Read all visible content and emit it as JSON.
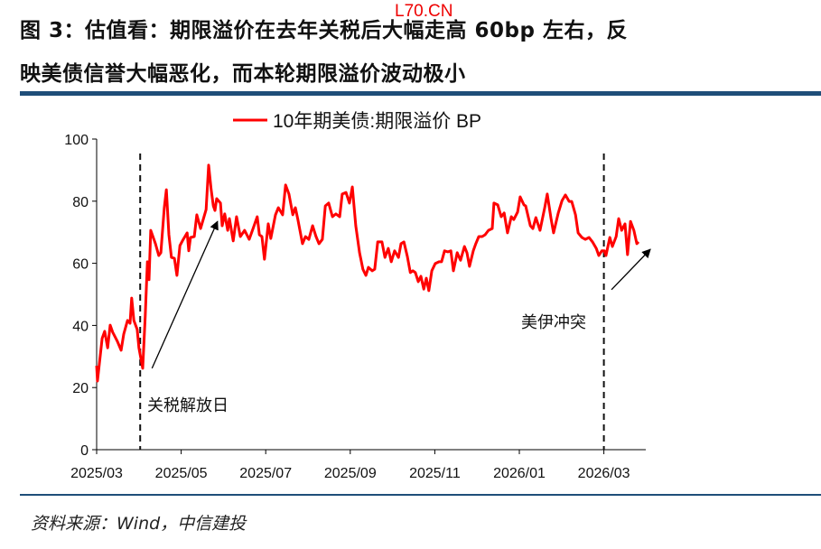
{
  "title": {
    "line1": "图 3：估值看：期限溢价在去年关税后大幅走高 60bp 左右，反",
    "line2": "映美债信誉大幅恶化，而本轮期限溢价波动极小"
  },
  "watermark": "L70.CN",
  "source": "资料来源：Wind，中信建投",
  "colors": {
    "series": "#ff0000",
    "rule": "#1f4e79"
  },
  "chart_data": {
    "type": "line",
    "title": "",
    "xlabel": "",
    "ylabel": "",
    "x_unit": "months since 2025/03",
    "xlim": [
      0,
      13
    ],
    "ylim": [
      0,
      100
    ],
    "yticks": [
      0,
      20,
      40,
      60,
      80,
      100
    ],
    "ytick_labels": [
      "0",
      "20",
      "40",
      "60",
      "80",
      "100"
    ],
    "xticks": [
      0,
      2,
      4,
      6,
      8,
      10,
      12
    ],
    "xtick_labels": [
      "2025/03",
      "2025/05",
      "2025/07",
      "2025/09",
      "2025/11",
      "2026/01",
      "2026/03"
    ],
    "legend": {
      "position": "top-center",
      "entries": [
        "10年期美债:期限溢价 BP"
      ]
    },
    "series": [
      {
        "name": "10年期美债:期限溢价 BP",
        "points": [
          [
            0,
            27.0
          ],
          [
            0.02,
            22.1
          ],
          [
            0.13,
            35.8
          ],
          [
            0.19,
            38.1
          ],
          [
            0.26,
            32.8
          ],
          [
            0.32,
            40.1
          ],
          [
            0.38,
            37.8
          ],
          [
            0.49,
            34.9
          ],
          [
            0.58,
            32.0
          ],
          [
            0.64,
            37.2
          ],
          [
            0.73,
            41.6
          ],
          [
            0.79,
            40.7
          ],
          [
            0.83,
            48.8
          ],
          [
            0.88,
            41.6
          ],
          [
            0.96,
            38.7
          ],
          [
            1.0,
            32.8
          ],
          [
            1.09,
            26.2
          ],
          [
            1.15,
            43.0
          ],
          [
            1.2,
            60.5
          ],
          [
            1.24,
            54.7
          ],
          [
            1.28,
            70.6
          ],
          [
            1.39,
            66.3
          ],
          [
            1.47,
            62.5
          ],
          [
            1.52,
            63.4
          ],
          [
            1.6,
            77.9
          ],
          [
            1.65,
            83.7
          ],
          [
            1.71,
            69.2
          ],
          [
            1.77,
            61.9
          ],
          [
            1.84,
            61.6
          ],
          [
            1.9,
            56.1
          ],
          [
            1.97,
            65.7
          ],
          [
            2.05,
            67.7
          ],
          [
            2.14,
            69.8
          ],
          [
            2.18,
            64.0
          ],
          [
            2.22,
            68.3
          ],
          [
            2.31,
            68.6
          ],
          [
            2.37,
            75.6
          ],
          [
            2.46,
            71.2
          ],
          [
            2.59,
            77.3
          ],
          [
            2.65,
            91.6
          ],
          [
            2.71,
            83.7
          ],
          [
            2.76,
            78.5
          ],
          [
            2.8,
            77.0
          ],
          [
            2.84,
            80.8
          ],
          [
            2.93,
            79.4
          ],
          [
            2.97,
            72.1
          ],
          [
            3.03,
            75.9
          ],
          [
            3.1,
            70.6
          ],
          [
            3.14,
            74.4
          ],
          [
            3.23,
            67.2
          ],
          [
            3.31,
            75.0
          ],
          [
            3.4,
            68.6
          ],
          [
            3.5,
            70.6
          ],
          [
            3.61,
            67.7
          ],
          [
            3.7,
            71.2
          ],
          [
            3.8,
            75.0
          ],
          [
            3.85,
            69.2
          ],
          [
            3.91,
            68.6
          ],
          [
            3.97,
            61.3
          ],
          [
            4.06,
            72.7
          ],
          [
            4.12,
            68.0
          ],
          [
            4.23,
            75.6
          ],
          [
            4.3,
            77.9
          ],
          [
            4.4,
            75.6
          ],
          [
            4.47,
            85.2
          ],
          [
            4.55,
            82.3
          ],
          [
            4.64,
            75.6
          ],
          [
            4.7,
            77.9
          ],
          [
            4.76,
            74.1
          ],
          [
            4.87,
            66.3
          ],
          [
            4.94,
            68.6
          ],
          [
            5.02,
            67.7
          ],
          [
            5.11,
            72.1
          ],
          [
            5.19,
            68.6
          ],
          [
            5.26,
            66.3
          ],
          [
            5.34,
            67.7
          ],
          [
            5.41,
            78.5
          ],
          [
            5.49,
            79.4
          ],
          [
            5.58,
            75.0
          ],
          [
            5.66,
            75.9
          ],
          [
            5.75,
            75.0
          ],
          [
            5.81,
            82.3
          ],
          [
            5.9,
            82.8
          ],
          [
            5.98,
            79.4
          ],
          [
            6.05,
            84.6
          ],
          [
            6.13,
            72.1
          ],
          [
            6.22,
            63.4
          ],
          [
            6.3,
            58.1
          ],
          [
            6.37,
            56.1
          ],
          [
            6.43,
            58.7
          ],
          [
            6.52,
            57.6
          ],
          [
            6.58,
            58.1
          ],
          [
            6.65,
            66.9
          ],
          [
            6.75,
            66.9
          ],
          [
            6.82,
            61.9
          ],
          [
            6.9,
            64.8
          ],
          [
            6.97,
            60.5
          ],
          [
            7.05,
            64.0
          ],
          [
            7.14,
            61.9
          ],
          [
            7.2,
            66.3
          ],
          [
            7.27,
            66.9
          ],
          [
            7.35,
            62.2
          ],
          [
            7.42,
            57.0
          ],
          [
            7.48,
            57.6
          ],
          [
            7.54,
            57.0
          ],
          [
            7.61,
            54.1
          ],
          [
            7.67,
            55.8
          ],
          [
            7.74,
            51.7
          ],
          [
            7.8,
            55.2
          ],
          [
            7.86,
            51.2
          ],
          [
            7.93,
            57.6
          ],
          [
            8.01,
            59.9
          ],
          [
            8.1,
            60.5
          ],
          [
            8.16,
            60.5
          ],
          [
            8.23,
            64.0
          ],
          [
            8.31,
            63.7
          ],
          [
            8.38,
            64.0
          ],
          [
            8.44,
            57.6
          ],
          [
            8.53,
            63.4
          ],
          [
            8.61,
            61.0
          ],
          [
            8.7,
            65.4
          ],
          [
            8.76,
            63.4
          ],
          [
            8.82,
            59.0
          ],
          [
            8.91,
            64.0
          ],
          [
            8.97,
            66.3
          ],
          [
            9.04,
            68.6
          ],
          [
            9.12,
            68.6
          ],
          [
            9.19,
            69.2
          ],
          [
            9.27,
            70.6
          ],
          [
            9.36,
            71.2
          ],
          [
            9.4,
            79.4
          ],
          [
            9.49,
            78.8
          ],
          [
            9.57,
            75.0
          ],
          [
            9.64,
            76.2
          ],
          [
            9.72,
            69.8
          ],
          [
            9.81,
            75.0
          ],
          [
            9.87,
            74.1
          ],
          [
            9.96,
            76.5
          ],
          [
            10.02,
            81.4
          ],
          [
            10.11,
            78.8
          ],
          [
            10.15,
            78.5
          ],
          [
            10.26,
            72.1
          ],
          [
            10.32,
            71.2
          ],
          [
            10.39,
            74.7
          ],
          [
            10.49,
            70.6
          ],
          [
            10.6,
            77.9
          ],
          [
            10.66,
            82.3
          ],
          [
            10.75,
            74.4
          ],
          [
            10.81,
            69.8
          ],
          [
            10.92,
            76.2
          ],
          [
            11.01,
            80.2
          ],
          [
            11.09,
            82.0
          ],
          [
            11.18,
            79.9
          ],
          [
            11.24,
            79.9
          ],
          [
            11.33,
            75.6
          ],
          [
            11.39,
            69.8
          ],
          [
            11.48,
            68.3
          ],
          [
            11.56,
            67.7
          ],
          [
            11.65,
            68.3
          ],
          [
            11.73,
            66.9
          ],
          [
            11.82,
            64.8
          ],
          [
            11.88,
            62.5
          ],
          [
            11.95,
            64.0
          ],
          [
            12.01,
            64.0
          ],
          [
            12.05,
            62.5
          ],
          [
            12.14,
            68.3
          ],
          [
            12.2,
            65.4
          ],
          [
            12.29,
            68.6
          ],
          [
            12.35,
            74.4
          ],
          [
            12.42,
            70.6
          ],
          [
            12.5,
            72.7
          ],
          [
            12.56,
            62.8
          ],
          [
            12.63,
            73.5
          ],
          [
            12.71,
            70.6
          ],
          [
            12.78,
            66.3
          ],
          [
            12.82,
            66.9
          ]
        ]
      }
    ],
    "vlines": [
      {
        "x": 1.03,
        "label": "关税解放日"
      },
      {
        "x": 12.0,
        "label": "美伊冲突"
      }
    ],
    "arrows": [
      {
        "from": [
          1.31,
          26.2
        ],
        "to": [
          2.86,
          73.5
        ]
      },
      {
        "from": [
          12.18,
          51.5
        ],
        "to": [
          13.1,
          64.5
        ]
      }
    ]
  }
}
